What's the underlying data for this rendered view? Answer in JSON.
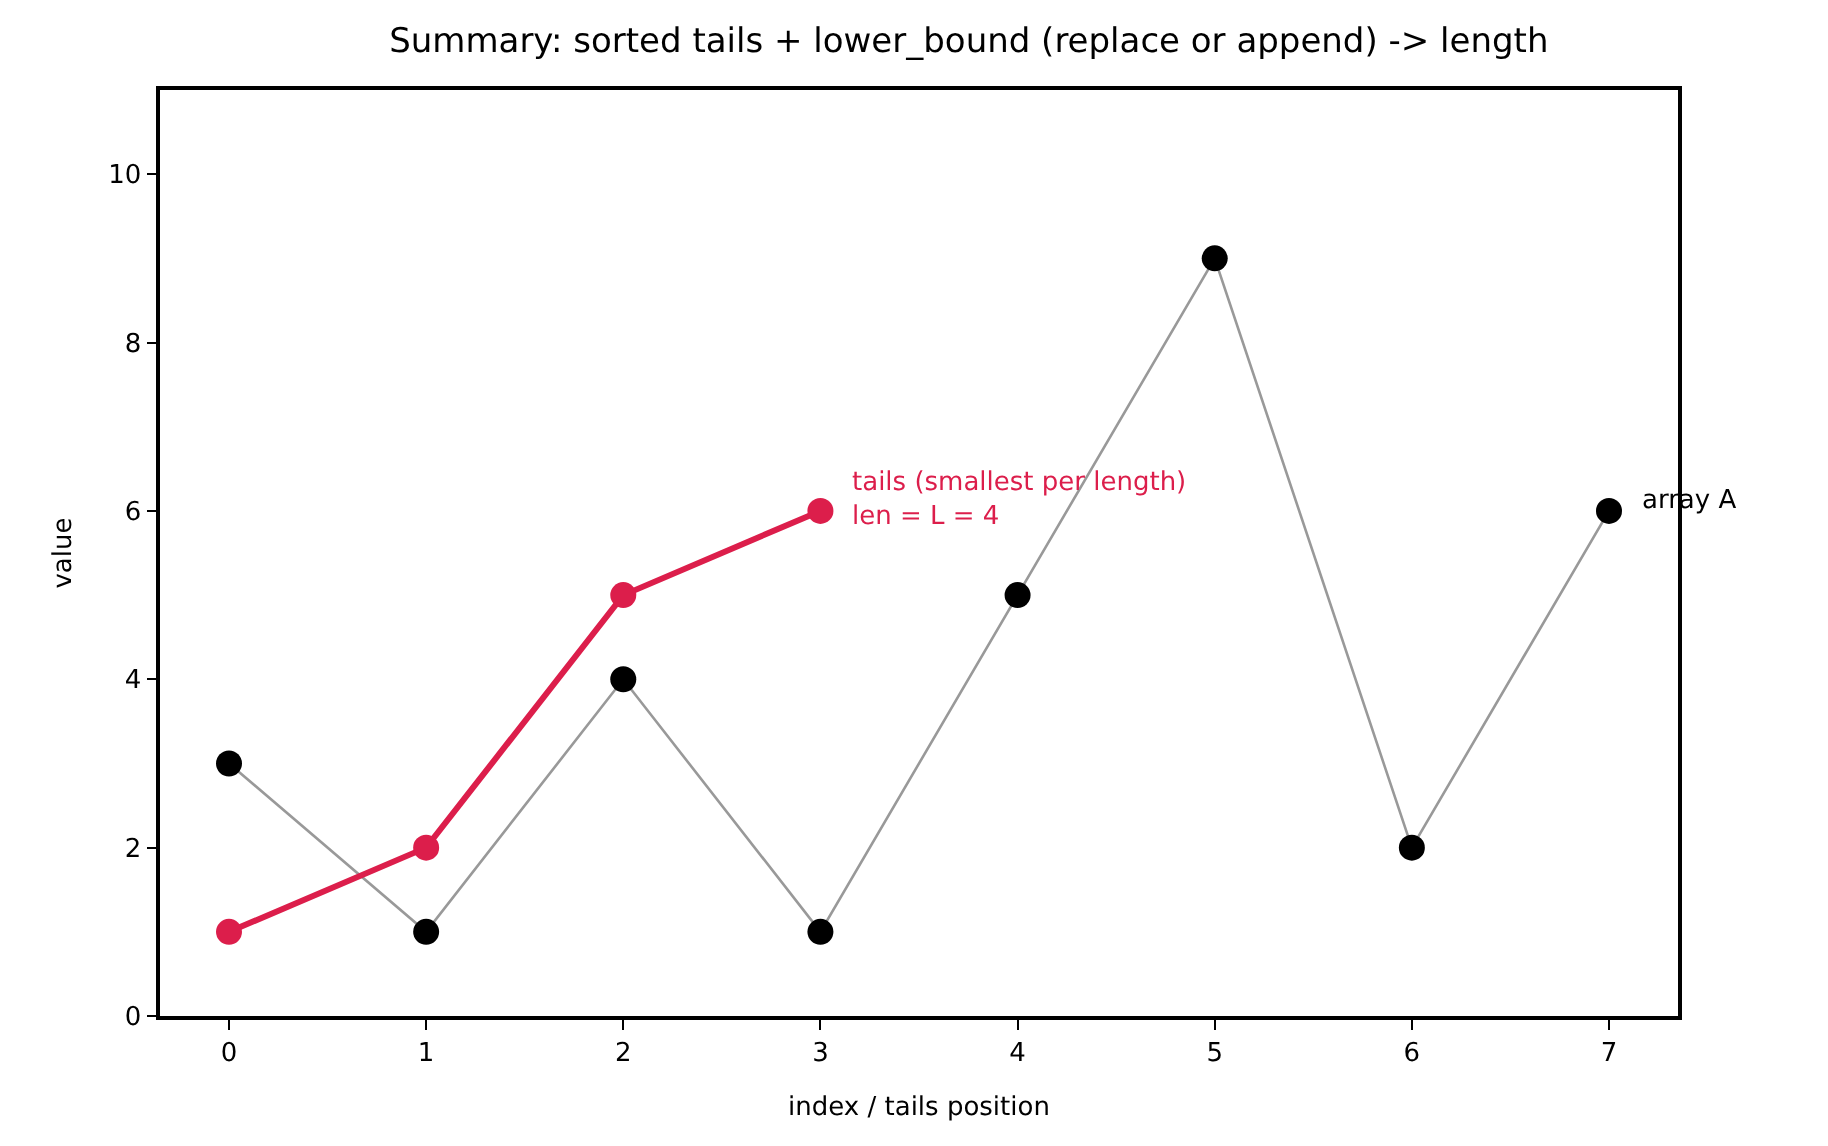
{
  "chart_data": {
    "type": "line",
    "title": "Summary: sorted tails + lower_bound (replace or append) -> length",
    "xlabel": "index / tails position",
    "ylabel": "value",
    "series": [
      {
        "color": "#000000",
        "x": [
          0,
          1,
          2,
          3,
          4,
          5,
          6,
          7
        ],
        "values": [
          3,
          1,
          4,
          1,
          5,
          9,
          2,
          6
        ]
      },
      {
        "color": "#dc1e4b",
        "x": [
          0,
          1,
          2,
          3
        ],
        "values": [
          1,
          2,
          5,
          6
        ]
      }
    ],
    "annotations": [
      {
        "text": "array A",
        "x": 7,
        "y": 6
      },
      {
        "text": "tails (smallest per length)\nlen = L = 4",
        "x": 3,
        "y": 6
      }
    ],
    "xlim": [
      -0.35,
      7.35
    ],
    "ylim": [
      0,
      11
    ],
    "xticks": [
      0,
      1,
      2,
      3,
      4,
      5,
      6,
      7
    ],
    "yticks": [
      0,
      2,
      4,
      6,
      8,
      10
    ],
    "marker": "circle",
    "line_style": "solid"
  }
}
